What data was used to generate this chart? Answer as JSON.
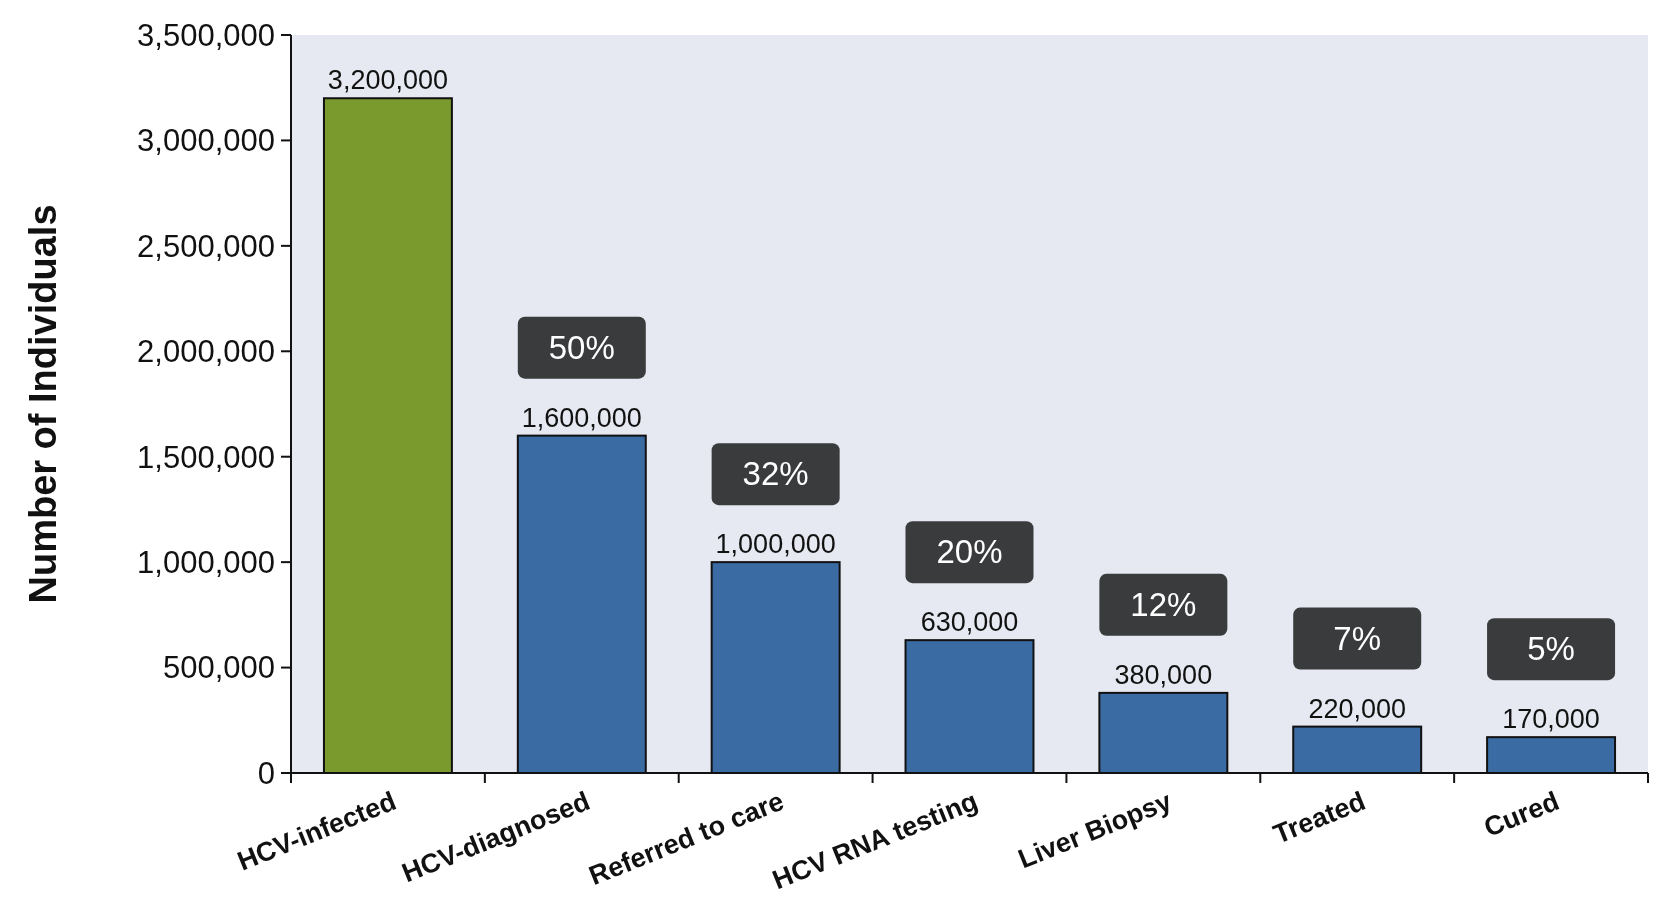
{
  "chart_data": {
    "type": "bar",
    "ylabel": "Number of Individuals",
    "categories": [
      "HCV-infected",
      "HCV-diagnosed",
      "Referred to care",
      "HCV RNA testing",
      "Liver Biopsy",
      "Treated",
      "Cured"
    ],
    "values": [
      3200000,
      1600000,
      1000000,
      630000,
      380000,
      220000,
      170000
    ],
    "colors": [
      "#7a9a2e",
      "#3a6ca3",
      "#3a6ca3",
      "#3a6ca3",
      "#3a6ca3",
      "#3a6ca3",
      "#3a6ca3"
    ],
    "value_labels": [
      "3,200,000",
      "1,600,000",
      "1,000,000",
      "630,000",
      "380,000",
      "220,000",
      "170,000"
    ],
    "ylim": [
      0,
      3500000
    ],
    "yticks": [
      {
        "value": 0,
        "label": "0"
      },
      {
        "value": 500000,
        "label": "500,000"
      },
      {
        "value": 1000000,
        "label": "1,000,000"
      },
      {
        "value": 1500000,
        "label": "1,500,000"
      },
      {
        "value": 2000000,
        "label": "2,000,000"
      },
      {
        "value": 2500000,
        "label": "2,500,000"
      },
      {
        "value": 3000000,
        "label": "3,000,000"
      },
      {
        "value": 3500000,
        "label": "3,500,000"
      }
    ],
    "annotations": [
      "50%",
      "32%",
      "20%",
      "12%",
      "7%",
      "5%"
    ],
    "grid": false
  }
}
